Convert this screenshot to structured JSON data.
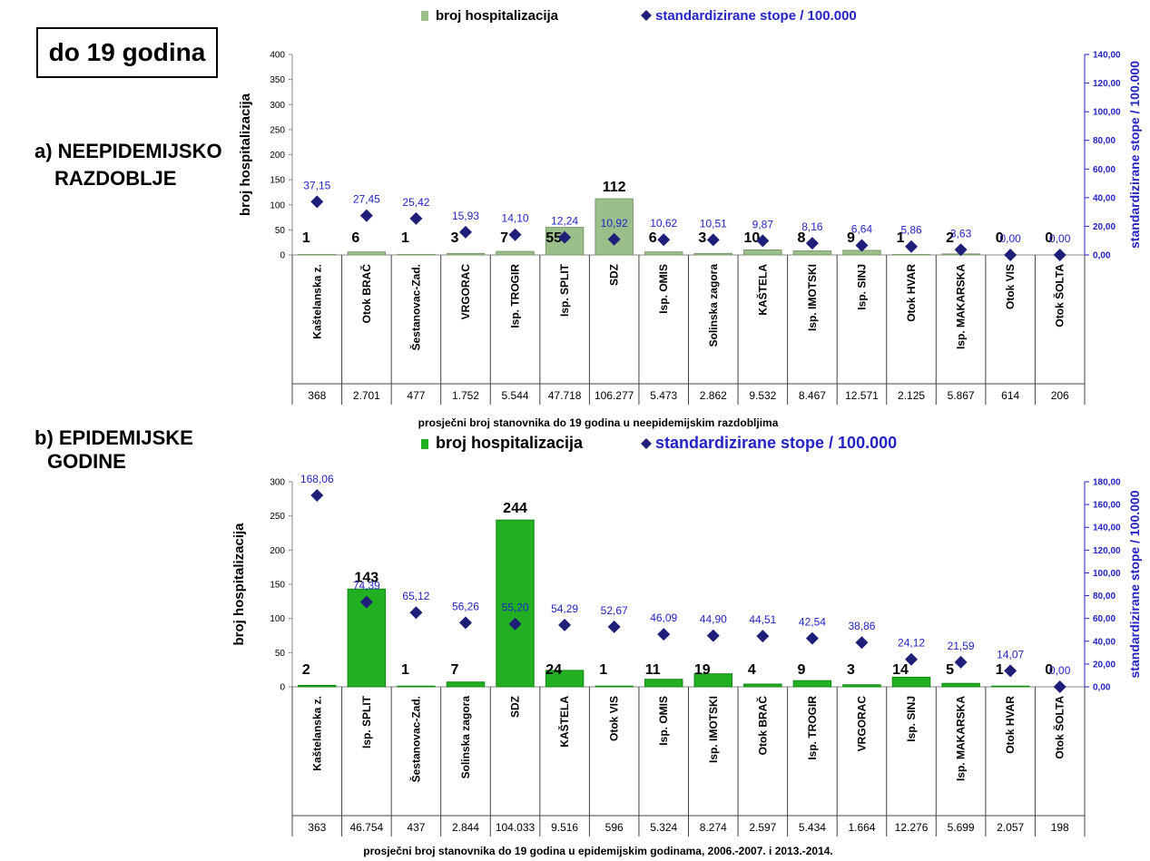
{
  "age_label": "do 19 godina",
  "section_a": {
    "line1": "a) NEEPIDEMIJSKO",
    "line2": "RAZDOBLJE"
  },
  "section_b": {
    "line1": "b) EPIDEMIJSKE",
    "line2": "GODINE"
  },
  "colors": {
    "bar_a": "#9bbf8a",
    "bar_b": "#22b022",
    "marker": "#1f1f7a",
    "rate_text": "#2323c8"
  },
  "chart_data": [
    {
      "type": "bar",
      "categories": [
        "Kaštelanska z.",
        "Otok BRAČ",
        "Šestanovac-Zad.",
        "VRGORAC",
        "Isp. TROGIR",
        "Isp. SPLIT",
        "SDZ",
        "Isp. OMIS",
        "Solinska zagora",
        "KAŠTELA",
        "Isp. IMOTSKI",
        "Isp. SINJ",
        "Otok HVAR",
        "Isp. MAKARSKA",
        "Otok VIS",
        "Otok ŠOLTA"
      ],
      "series": [
        {
          "name": "broj hospitalizacija",
          "axis": "left",
          "values": [
            1,
            6,
            1,
            3,
            7,
            55,
            112,
            6,
            3,
            10,
            8,
            9,
            1,
            2,
            0,
            0
          ],
          "labels": [
            "1",
            "6",
            "1",
            "3",
            "7",
            "55",
            "112",
            "6",
            "3",
            "10",
            "8",
            "9",
            "1",
            "2",
            "0",
            "0"
          ]
        },
        {
          "name": "standardizirane stope / 100.000",
          "axis": "right",
          "values": [
            37.15,
            27.45,
            25.42,
            15.93,
            14.1,
            12.24,
            10.92,
            10.62,
            10.51,
            9.87,
            8.16,
            6.64,
            5.86,
            3.63,
            0.0,
            0.0
          ],
          "labels": [
            "37,15",
            "27,45",
            "25,42",
            "15,93",
            "14,10",
            "12,24",
            "10,92",
            "10,62",
            "10,51",
            "9,87",
            "8,16",
            "6,64",
            "5,86",
            "3,63",
            "0,00",
            "0,00"
          ]
        }
      ],
      "population": [
        "368",
        "2.701",
        "477",
        "1.752",
        "5.544",
        "47.718",
        "106.277",
        "5.473",
        "2.862",
        "9.532",
        "8.467",
        "12.571",
        "2.125",
        "5.867",
        "614",
        "206"
      ],
      "ylabel": "broj hospitalizacija",
      "y2label": "standardizirane stope / 100.000",
      "xlabel": "prosječni broj stanovnika do 19 godina u neepidemijskim razdobljima",
      "ylim": [
        0,
        400
      ],
      "y_ticks": [
        "0",
        "50",
        "100",
        "150",
        "200",
        "250",
        "300",
        "350",
        "400"
      ],
      "y2lim": [
        0,
        140
      ],
      "y2_ticks": [
        "0,00",
        "20,00",
        "40,00",
        "60,00",
        "80,00",
        "100,00",
        "120,00",
        "140,00"
      ],
      "legend_position": "top"
    },
    {
      "type": "bar",
      "categories": [
        "Kaštelanska z.",
        "Isp. SPLIT",
        "Šestanovac-Zad.",
        "Solinska zagora",
        "SDZ",
        "KAŠTELA",
        "Otok VIS",
        "Isp. OMIS",
        "Isp. IMOTSKI",
        "Otok BRAČ",
        "Isp. TROGIR",
        "VRGORAC",
        "Isp. SINJ",
        "Isp. MAKARSKA",
        "Otok HVAR",
        "Otok ŠOLTA"
      ],
      "series": [
        {
          "name": "broj hospitalizacija",
          "axis": "left",
          "values": [
            2,
            143,
            1,
            7,
            244,
            24,
            1,
            11,
            19,
            4,
            9,
            3,
            14,
            5,
            1,
            0
          ],
          "labels": [
            "2",
            "143",
            "1",
            "7",
            "244",
            "24",
            "1",
            "11",
            "19",
            "4",
            "9",
            "3",
            "14",
            "5",
            "1",
            "0"
          ]
        },
        {
          "name": "standardizirane stope / 100.000",
          "axis": "right",
          "values": [
            168.06,
            74.39,
            65.12,
            56.26,
            55.2,
            54.29,
            52.67,
            46.09,
            44.9,
            44.51,
            42.54,
            38.86,
            24.12,
            21.59,
            14.07,
            0.0
          ],
          "labels": [
            "168,06",
            "74,39",
            "65,12",
            "56,26",
            "55,20",
            "54,29",
            "52,67",
            "46,09",
            "44,90",
            "44,51",
            "42,54",
            "38,86",
            "24,12",
            "21,59",
            "14,07",
            "0,00"
          ]
        }
      ],
      "population": [
        "363",
        "46.754",
        "437",
        "2.844",
        "104.033",
        "9.516",
        "596",
        "5.324",
        "8.274",
        "2.597",
        "5.434",
        "1.664",
        "12.276",
        "5.699",
        "2.057",
        "198"
      ],
      "ylabel": "broj hospitalizacija",
      "y2label": "standardizirane stope / 100.000",
      "xlabel": "prosječni broj stanovnika do 19 godina u epidemijskim godinama, 2006.-2007. i 2013.-2014.",
      "ylim": [
        0,
        300
      ],
      "y_ticks": [
        "0",
        "50",
        "100",
        "150",
        "200",
        "250",
        "300"
      ],
      "y2lim": [
        0,
        180
      ],
      "y2_ticks": [
        "0,00",
        "20,00",
        "40,00",
        "60,00",
        "80,00",
        "100,00",
        "120,00",
        "140,00",
        "160,00",
        "180,00"
      ],
      "legend_position": "top"
    }
  ]
}
